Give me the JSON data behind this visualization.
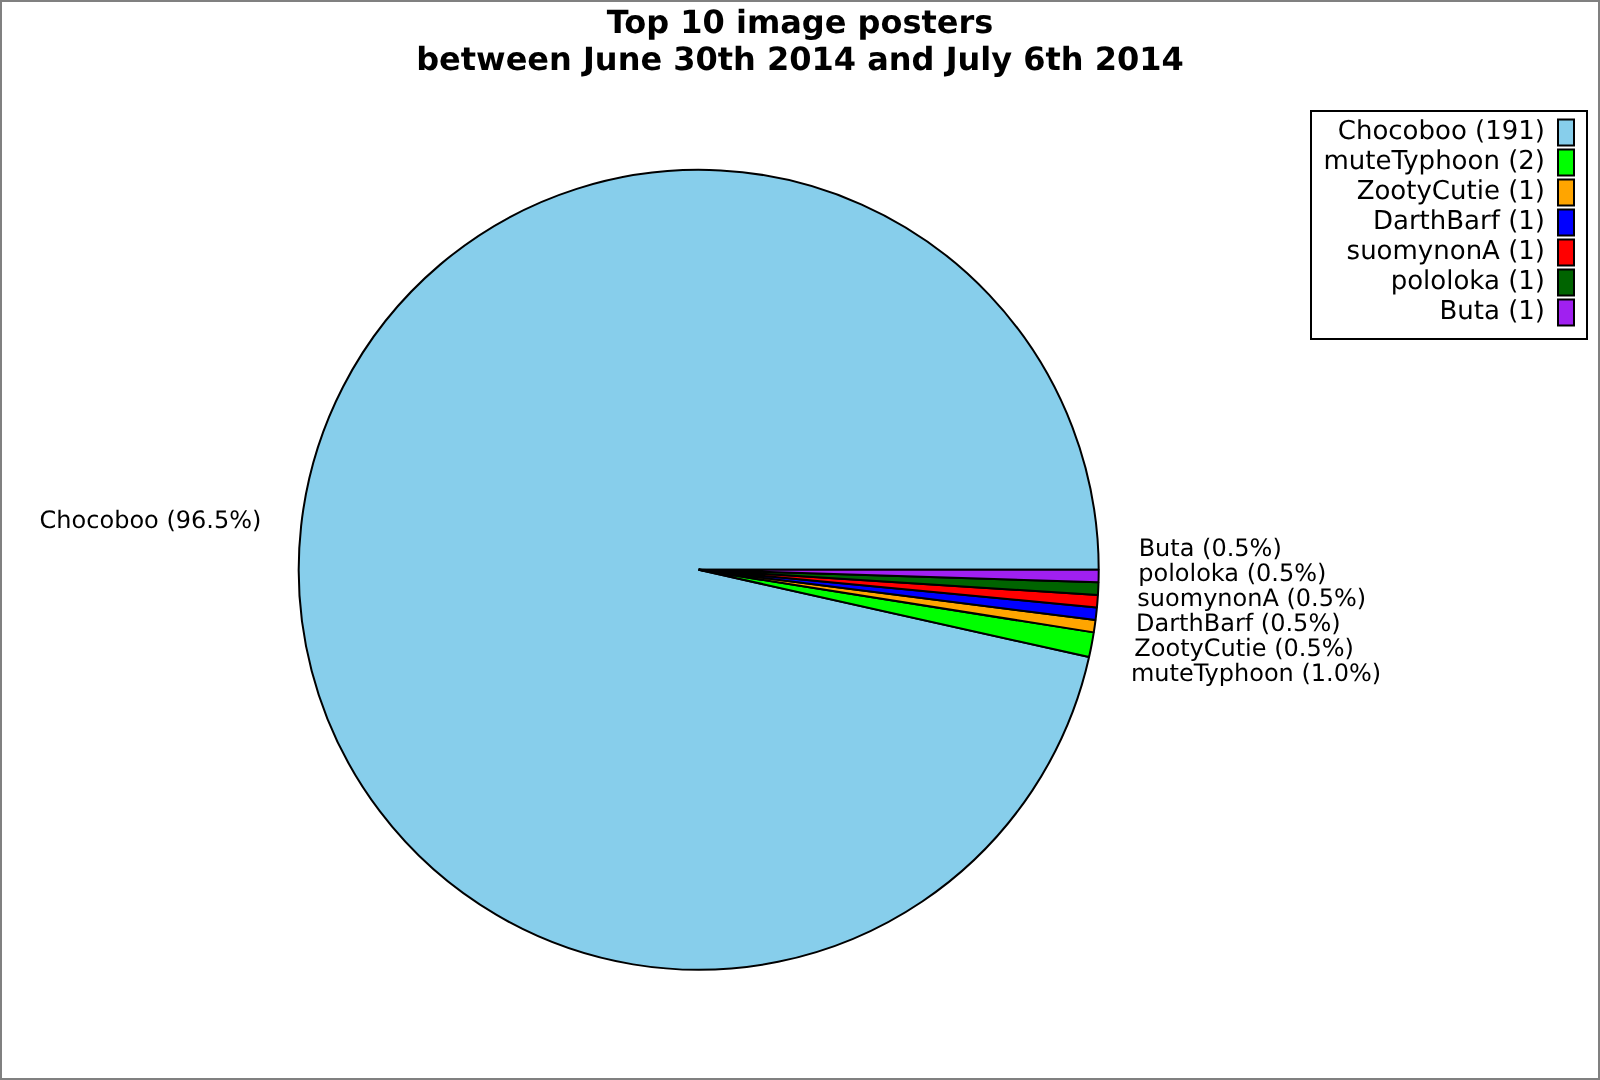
{
  "chart_data": {
    "type": "pie",
    "title": "Top 10 image posters\nbetween June 30th 2014 and July 6th 2014",
    "categories": [
      "Chocoboo (191)",
      "muteTyphoon (2)",
      "ZootyCutie (1)",
      "DarthBarf (1)",
      "suomynonA (1)",
      "pololoka (1)",
      "Buta (1)"
    ],
    "values": [
      96.5,
      1.0,
      0.5,
      0.5,
      0.5,
      0.5,
      0.5
    ],
    "colors": [
      "#87ceeb",
      "#00ff00",
      "#ffa500",
      "#0000ff",
      "#ff0000",
      "#006400",
      "#a020f0"
    ],
    "value_labels": [
      "Chocoboo (96.5%)",
      "muteTyphoon (1.0%)",
      "ZootyCutie (0.5%)",
      "DarthBarf (0.5%)",
      "suomynonA (0.5%)",
      "pololoka (0.5%)",
      "Buta (0.5%)"
    ],
    "legend": "top right"
  }
}
